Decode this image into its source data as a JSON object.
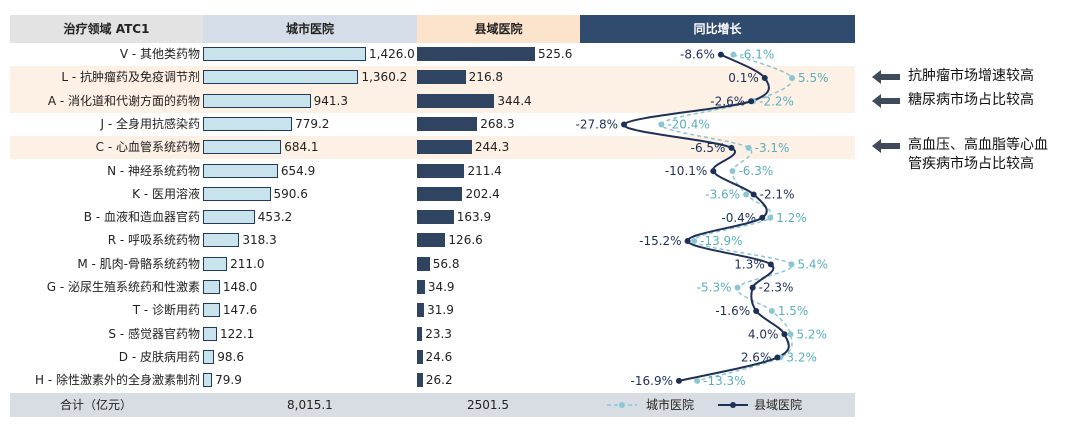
{
  "headers": {
    "category": "治疗领域 ATC1",
    "city": "城市医院",
    "county": "县域医院",
    "growth": "同比增长"
  },
  "chart_data": {
    "type": "bar",
    "categories": [
      "V - 其他类药物",
      "L - 抗肿瘤药及免疫调节剂",
      "A - 消化道和代谢方面的药物",
      "J - 全身用抗感染药",
      "C - 心血管系统药物",
      "N - 神经系统药物",
      "K - 医用溶液",
      "B - 血液和造血器官药",
      "R - 呼吸系统药物",
      "M - 肌肉-骨骼系统药物",
      "G - 泌尿生殖系统药和性激素",
      "T - 诊断用药",
      "S - 感觉器官药物",
      "D - 皮肤病用药",
      "H - 除性激素外的全身激素制剂"
    ],
    "series": [
      {
        "name": "城市医院",
        "values": [
          1426.0,
          1360.2,
          941.3,
          779.2,
          684.1,
          654.9,
          590.6,
          453.2,
          318.3,
          211.0,
          148.0,
          147.6,
          122.1,
          98.6,
          79.9
        ],
        "labels": [
          "1,426.0",
          "1,360.2",
          "941.3",
          "779.2",
          "684.1",
          "654.9",
          "590.6",
          "453.2",
          "318.3",
          "211.0",
          "148.0",
          "147.6",
          "122.1",
          "98.6",
          "79.9"
        ]
      },
      {
        "name": "县域医院",
        "values": [
          525.6,
          216.8,
          344.4,
          268.3,
          244.3,
          211.4,
          202.4,
          163.9,
          126.6,
          56.8,
          34.9,
          31.9,
          23.3,
          24.6,
          26.2
        ],
        "labels": [
          "525.6",
          "216.8",
          "344.4",
          "268.3",
          "244.3",
          "211.4",
          "202.4",
          "163.9",
          "126.6",
          "56.8",
          "34.9",
          "31.9",
          "23.3",
          "24.6",
          "26.2"
        ]
      }
    ],
    "growth": {
      "series": [
        {
          "name": "城市医院",
          "values": [
            -6.1,
            5.5,
            -2.2,
            -20.4,
            -3.1,
            -6.3,
            -3.6,
            1.2,
            -13.9,
            5.4,
            -5.3,
            1.5,
            5.2,
            3.2,
            -13.3
          ],
          "labels": [
            "-6.1%",
            "5.5%",
            "-2.2%",
            "-20.4%",
            "-3.1%",
            "-6.3%",
            "-3.6%",
            "1.2%",
            "-13.9%",
            "5.4%",
            "-5.3%",
            "1.5%",
            "5.2%",
            "3.2%",
            "-13.3%"
          ]
        },
        {
          "name": "县域医院",
          "values": [
            -8.6,
            0.1,
            -2.6,
            -27.8,
            -6.5,
            -10.1,
            -2.1,
            -0.4,
            -15.2,
            1.3,
            -2.3,
            -1.6,
            4.0,
            2.6,
            -16.9
          ],
          "labels": [
            "-8.6%",
            "0.1%",
            "-2.6%",
            "-27.8%",
            "-6.5%",
            "-10.1%",
            "-2.1%",
            "-0.4%",
            "-15.2%",
            "1.3%",
            "-2.3%",
            "-1.6%",
            "4.0%",
            "2.6%",
            "-16.9%"
          ]
        }
      ]
    },
    "highlight_rows": [
      1,
      2,
      4
    ]
  },
  "footer": {
    "label": "合计（亿元）",
    "city_total": "8,015.1",
    "county_total": "2501.5"
  },
  "legend": {
    "city": "城市医院",
    "county": "县域医院"
  },
  "notes": [
    {
      "text": "抗肿瘤市场增速较高"
    },
    {
      "text": "糖尿病市场占比较高"
    },
    {
      "line1": "高血压、高血脂等心血",
      "line2": "管疾病市场占比较高"
    }
  ],
  "colors": {
    "city_bar": "#c9e3ec",
    "city_bar_border": "#1f3a5c",
    "county_bar": "#2e4461",
    "header_city": "#d5dde8",
    "header_county": "#fbe3cc",
    "header_growth": "#2f4b6e",
    "header_cat": "#e3e3e3",
    "highlight": "#fdf0e4",
    "city_line": "#8cc6d4",
    "county_line": "#1e2f58"
  }
}
